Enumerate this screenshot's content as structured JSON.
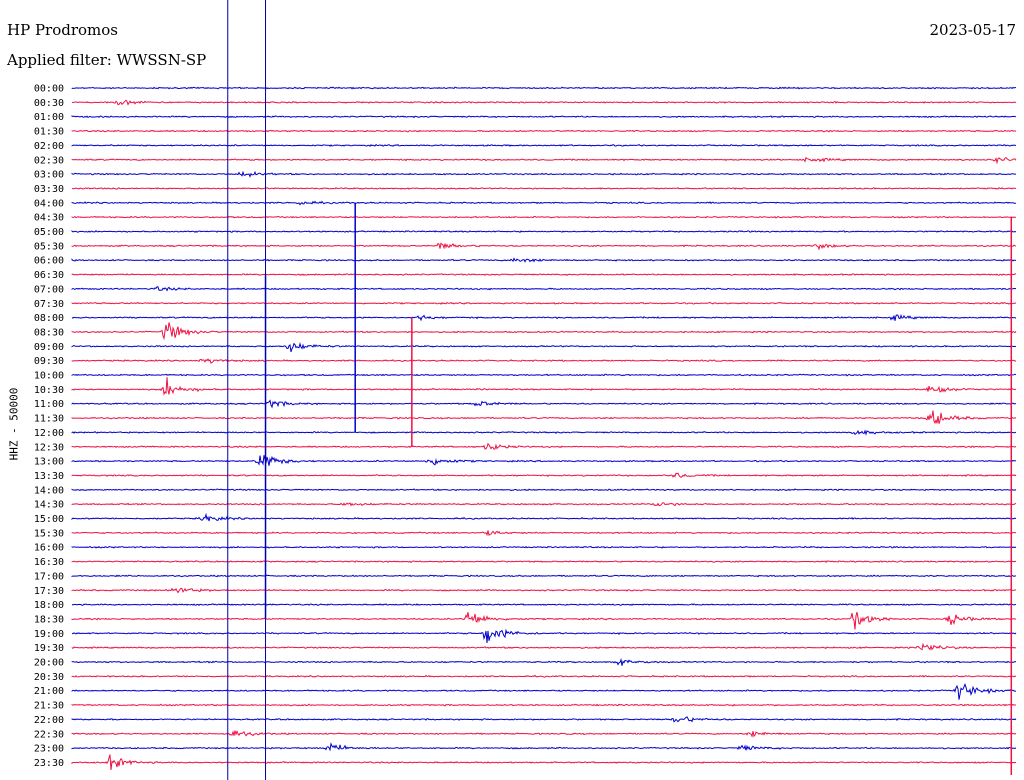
{
  "header": {
    "station": "HP Prodromos",
    "date": "2023-05-17",
    "filter": "Applied filter: WWSSN-SP"
  },
  "axis": {
    "ylabel": "HHZ - 50000"
  },
  "colors": {
    "trace_a": "#0000cc",
    "trace_b": "#ee1144",
    "marker": "#0000aa"
  },
  "chart_data": {
    "type": "line",
    "title": "HP Prodromos",
    "ylabel": "HHZ - 50000",
    "row_interval_minutes": 30,
    "row_labels": [
      "00:00",
      "00:30",
      "01:00",
      "01:30",
      "02:00",
      "02:30",
      "03:00",
      "03:30",
      "04:00",
      "04:30",
      "05:00",
      "05:30",
      "06:00",
      "06:30",
      "07:00",
      "07:30",
      "08:00",
      "08:30",
      "09:00",
      "09:30",
      "10:00",
      "10:30",
      "11:00",
      "11:30",
      "12:00",
      "12:30",
      "13:00",
      "13:30",
      "14:00",
      "14:30",
      "15:00",
      "15:30",
      "16:00",
      "16:30",
      "17:00",
      "17:30",
      "18:00",
      "18:30",
      "19:00",
      "19:30",
      "20:00",
      "20:30",
      "21:00",
      "21:30",
      "22:00",
      "22:30",
      "23:00",
      "23:30"
    ],
    "row_colors": [
      "blue",
      "red"
    ],
    "events": [
      {
        "row": 1,
        "x": 0.05,
        "amp": 0.6
      },
      {
        "row": 5,
        "x": 0.78,
        "amp": 0.5
      },
      {
        "row": 5,
        "x": 0.98,
        "amp": 0.6
      },
      {
        "row": 6,
        "x": 0.18,
        "amp": 0.6
      },
      {
        "row": 8,
        "x": 0.24,
        "amp": 0.4
      },
      {
        "row": 11,
        "x": 0.39,
        "amp": 0.7
      },
      {
        "row": 11,
        "x": 0.79,
        "amp": 0.5
      },
      {
        "row": 12,
        "x": 0.47,
        "amp": 0.6
      },
      {
        "row": 14,
        "x": 0.09,
        "amp": 0.4
      },
      {
        "row": 16,
        "x": 0.37,
        "amp": 0.4
      },
      {
        "row": 16,
        "x": 0.87,
        "amp": 0.5
      },
      {
        "row": 17,
        "x": 0.1,
        "amp": 2.2
      },
      {
        "row": 18,
        "x": 0.23,
        "amp": 1.2
      },
      {
        "row": 19,
        "x": 0.14,
        "amp": 0.6
      },
      {
        "row": 21,
        "x": 0.1,
        "amp": 1.8
      },
      {
        "row": 21,
        "x": 0.91,
        "amp": 1.5
      },
      {
        "row": 22,
        "x": 0.21,
        "amp": 0.8
      },
      {
        "row": 22,
        "x": 0.43,
        "amp": 0.6
      },
      {
        "row": 23,
        "x": 0.91,
        "amp": 2.0
      },
      {
        "row": 24,
        "x": 0.83,
        "amp": 0.5
      },
      {
        "row": 25,
        "x": 0.44,
        "amp": 0.8
      },
      {
        "row": 26,
        "x": 0.2,
        "amp": 2.0
      },
      {
        "row": 26,
        "x": 0.38,
        "amp": 1.0
      },
      {
        "row": 27,
        "x": 0.64,
        "amp": 0.5
      },
      {
        "row": 29,
        "x": 0.29,
        "amp": 0.4
      },
      {
        "row": 29,
        "x": 0.62,
        "amp": 0.5
      },
      {
        "row": 30,
        "x": 0.14,
        "amp": 0.8
      },
      {
        "row": 31,
        "x": 0.44,
        "amp": 0.5
      },
      {
        "row": 35,
        "x": 0.11,
        "amp": 0.8
      },
      {
        "row": 37,
        "x": 0.42,
        "amp": 1.8
      },
      {
        "row": 37,
        "x": 0.83,
        "amp": 2.0
      },
      {
        "row": 37,
        "x": 0.93,
        "amp": 1.2
      },
      {
        "row": 38,
        "x": 0.44,
        "amp": 2.5
      },
      {
        "row": 39,
        "x": 0.9,
        "amp": 1.2
      },
      {
        "row": 40,
        "x": 0.58,
        "amp": 0.6
      },
      {
        "row": 42,
        "x": 0.94,
        "amp": 2.0
      },
      {
        "row": 44,
        "x": 0.64,
        "amp": 1.0
      },
      {
        "row": 45,
        "x": 0.17,
        "amp": 0.8
      },
      {
        "row": 45,
        "x": 0.72,
        "amp": 0.6
      },
      {
        "row": 46,
        "x": 0.27,
        "amp": 1.2
      },
      {
        "row": 46,
        "x": 0.71,
        "amp": 0.6
      },
      {
        "row": 47,
        "x": 0.04,
        "amp": 1.4
      }
    ],
    "spikes": [
      {
        "row": 26,
        "x": 0.205,
        "up": 13,
        "down": 11
      },
      {
        "row": 23,
        "x": 0.36,
        "up": 7,
        "down": 2
      },
      {
        "row": 14,
        "x": 0.3,
        "up": 6,
        "down": 10
      },
      {
        "row": 15,
        "x": 0.995,
        "up": 6,
        "down": 34
      }
    ],
    "vertical_markers_x": [
      0.165,
      0.205
    ],
    "grid": false,
    "legend": "none"
  }
}
